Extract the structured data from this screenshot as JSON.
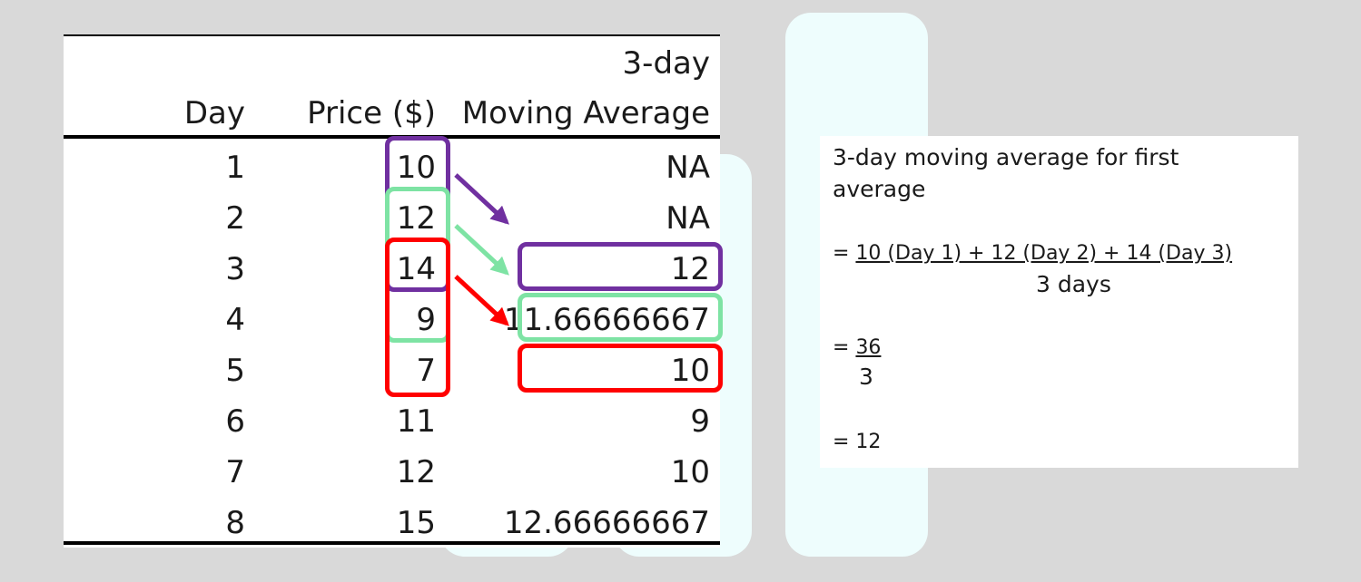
{
  "table": {
    "header_top": "3-day",
    "headers": [
      "Day",
      "Price ($)",
      "Moving Average"
    ],
    "rows": [
      {
        "day": "1",
        "price": "10",
        "ma": "NA"
      },
      {
        "day": "2",
        "price": "12",
        "ma": "NA"
      },
      {
        "day": "3",
        "price": "14",
        "ma": "12"
      },
      {
        "day": "4",
        "price": "9",
        "ma": "11.66666667"
      },
      {
        "day": "5",
        "price": "7",
        "ma": "10"
      },
      {
        "day": "6",
        "price": "11",
        "ma": "9"
      },
      {
        "day": "7",
        "price": "12",
        "ma": "10"
      },
      {
        "day": "8",
        "price": "15",
        "ma": "12.66666667"
      }
    ]
  },
  "highlights": {
    "colors": {
      "purple": "#7030a0",
      "green": "#7ee3a4",
      "red": "#ff0000"
    },
    "windows": [
      {
        "color": "purple",
        "price_rows": [
          1,
          2,
          3
        ],
        "result_row": 3
      },
      {
        "color": "green",
        "price_rows": [
          2,
          3,
          4
        ],
        "result_row": 4
      },
      {
        "color": "red",
        "price_rows": [
          3,
          4,
          5
        ],
        "result_row": 5
      }
    ]
  },
  "calculation": {
    "title_line1": "3-day moving average for first",
    "title_line2": "average",
    "eq1_prefix": "= ",
    "eq1_numerator": "10 (Day 1) + 12 (Day 2) + 14 (Day 3)",
    "eq1_denominator": "3 days",
    "eq2_prefix": "= ",
    "eq2_numerator": "36",
    "eq2_denominator": "3",
    "result": "= 12"
  }
}
